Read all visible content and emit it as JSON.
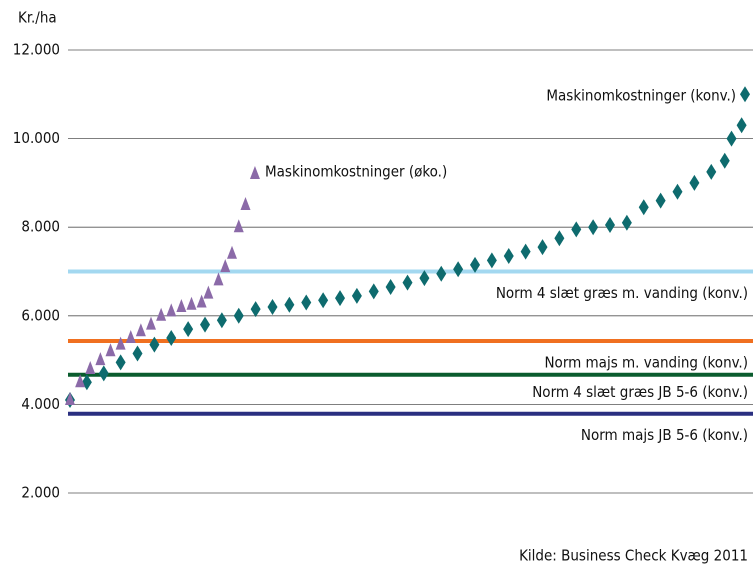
{
  "chart_data": {
    "type": "scatter",
    "y_label": "Kr./ha",
    "source": "Kilde: Business Check Kvæg 2011",
    "xlim": [
      0,
      100
    ],
    "ylim": [
      2000,
      12000
    ],
    "yticks": [
      {
        "value": 2000,
        "label": "2.000"
      },
      {
        "value": 4000,
        "label": "4.000"
      },
      {
        "value": 6000,
        "label": "6.000"
      },
      {
        "value": 8000,
        "label": "8.000"
      },
      {
        "value": 10000,
        "label": "10.000"
      },
      {
        "value": 12000,
        "label": "12.000"
      }
    ],
    "grid": true,
    "series": [
      {
        "name": "Maskinomkostninger (konv.)",
        "color": "#0e6b6e",
        "marker": "diamond",
        "x": [
          0,
          2.5,
          5,
          7.5,
          10,
          12.5,
          15,
          17.5,
          20,
          22.5,
          25,
          27.5,
          30,
          32.5,
          35,
          37.5,
          40,
          42.5,
          45,
          47.5,
          50,
          52.5,
          55,
          57.5,
          60,
          62.5,
          65,
          67.5,
          70,
          72.5,
          75,
          77.5,
          80,
          82.5,
          85,
          87.5,
          90,
          92.5,
          95,
          97,
          98,
          99.5,
          100
        ],
        "values": [
          4100,
          4500,
          4700,
          4950,
          5150,
          5350,
          5500,
          5700,
          5800,
          5900,
          6000,
          6150,
          6200,
          6250,
          6300,
          6350,
          6400,
          6450,
          6550,
          6650,
          6750,
          6850,
          6950,
          7050,
          7150,
          7250,
          7350,
          7450,
          7550,
          7750,
          7950,
          8000,
          8050,
          8100,
          8450,
          8600,
          8800,
          9000,
          9250,
          9500,
          10000,
          10300,
          11000
        ]
      },
      {
        "name": "Maskinomkostninger (øko.)",
        "color": "#8b6aa8",
        "marker": "triangle",
        "x": [
          0,
          1.5,
          3,
          4.5,
          6,
          7.5,
          9,
          10.5,
          12,
          13.5,
          15,
          16.5,
          18,
          19.5,
          20.5,
          22,
          23,
          24,
          25,
          26,
          27.4
        ],
        "values": [
          4100,
          4500,
          4800,
          5000,
          5200,
          5350,
          5500,
          5650,
          5800,
          6000,
          6100,
          6200,
          6250,
          6300,
          6500,
          6800,
          7100,
          7400,
          8000,
          8500,
          9200
        ]
      }
    ],
    "reference_lines": [
      {
        "name": "Norm 4 slæt græs m. vanding (konv.)",
        "value": 7000,
        "color": "#a3d8f0"
      },
      {
        "name": "Norm majs m. vanding (konv.)",
        "value": 5430,
        "color": "#f07020"
      },
      {
        "name": "Norm 4 slæt græs JB 5-6 (konv.)",
        "value": 4670,
        "color": "#0a5c2e"
      },
      {
        "name": "Norm majs JB 5-6 (konv.)",
        "value": 3790,
        "color": "#2a2f80"
      }
    ]
  }
}
